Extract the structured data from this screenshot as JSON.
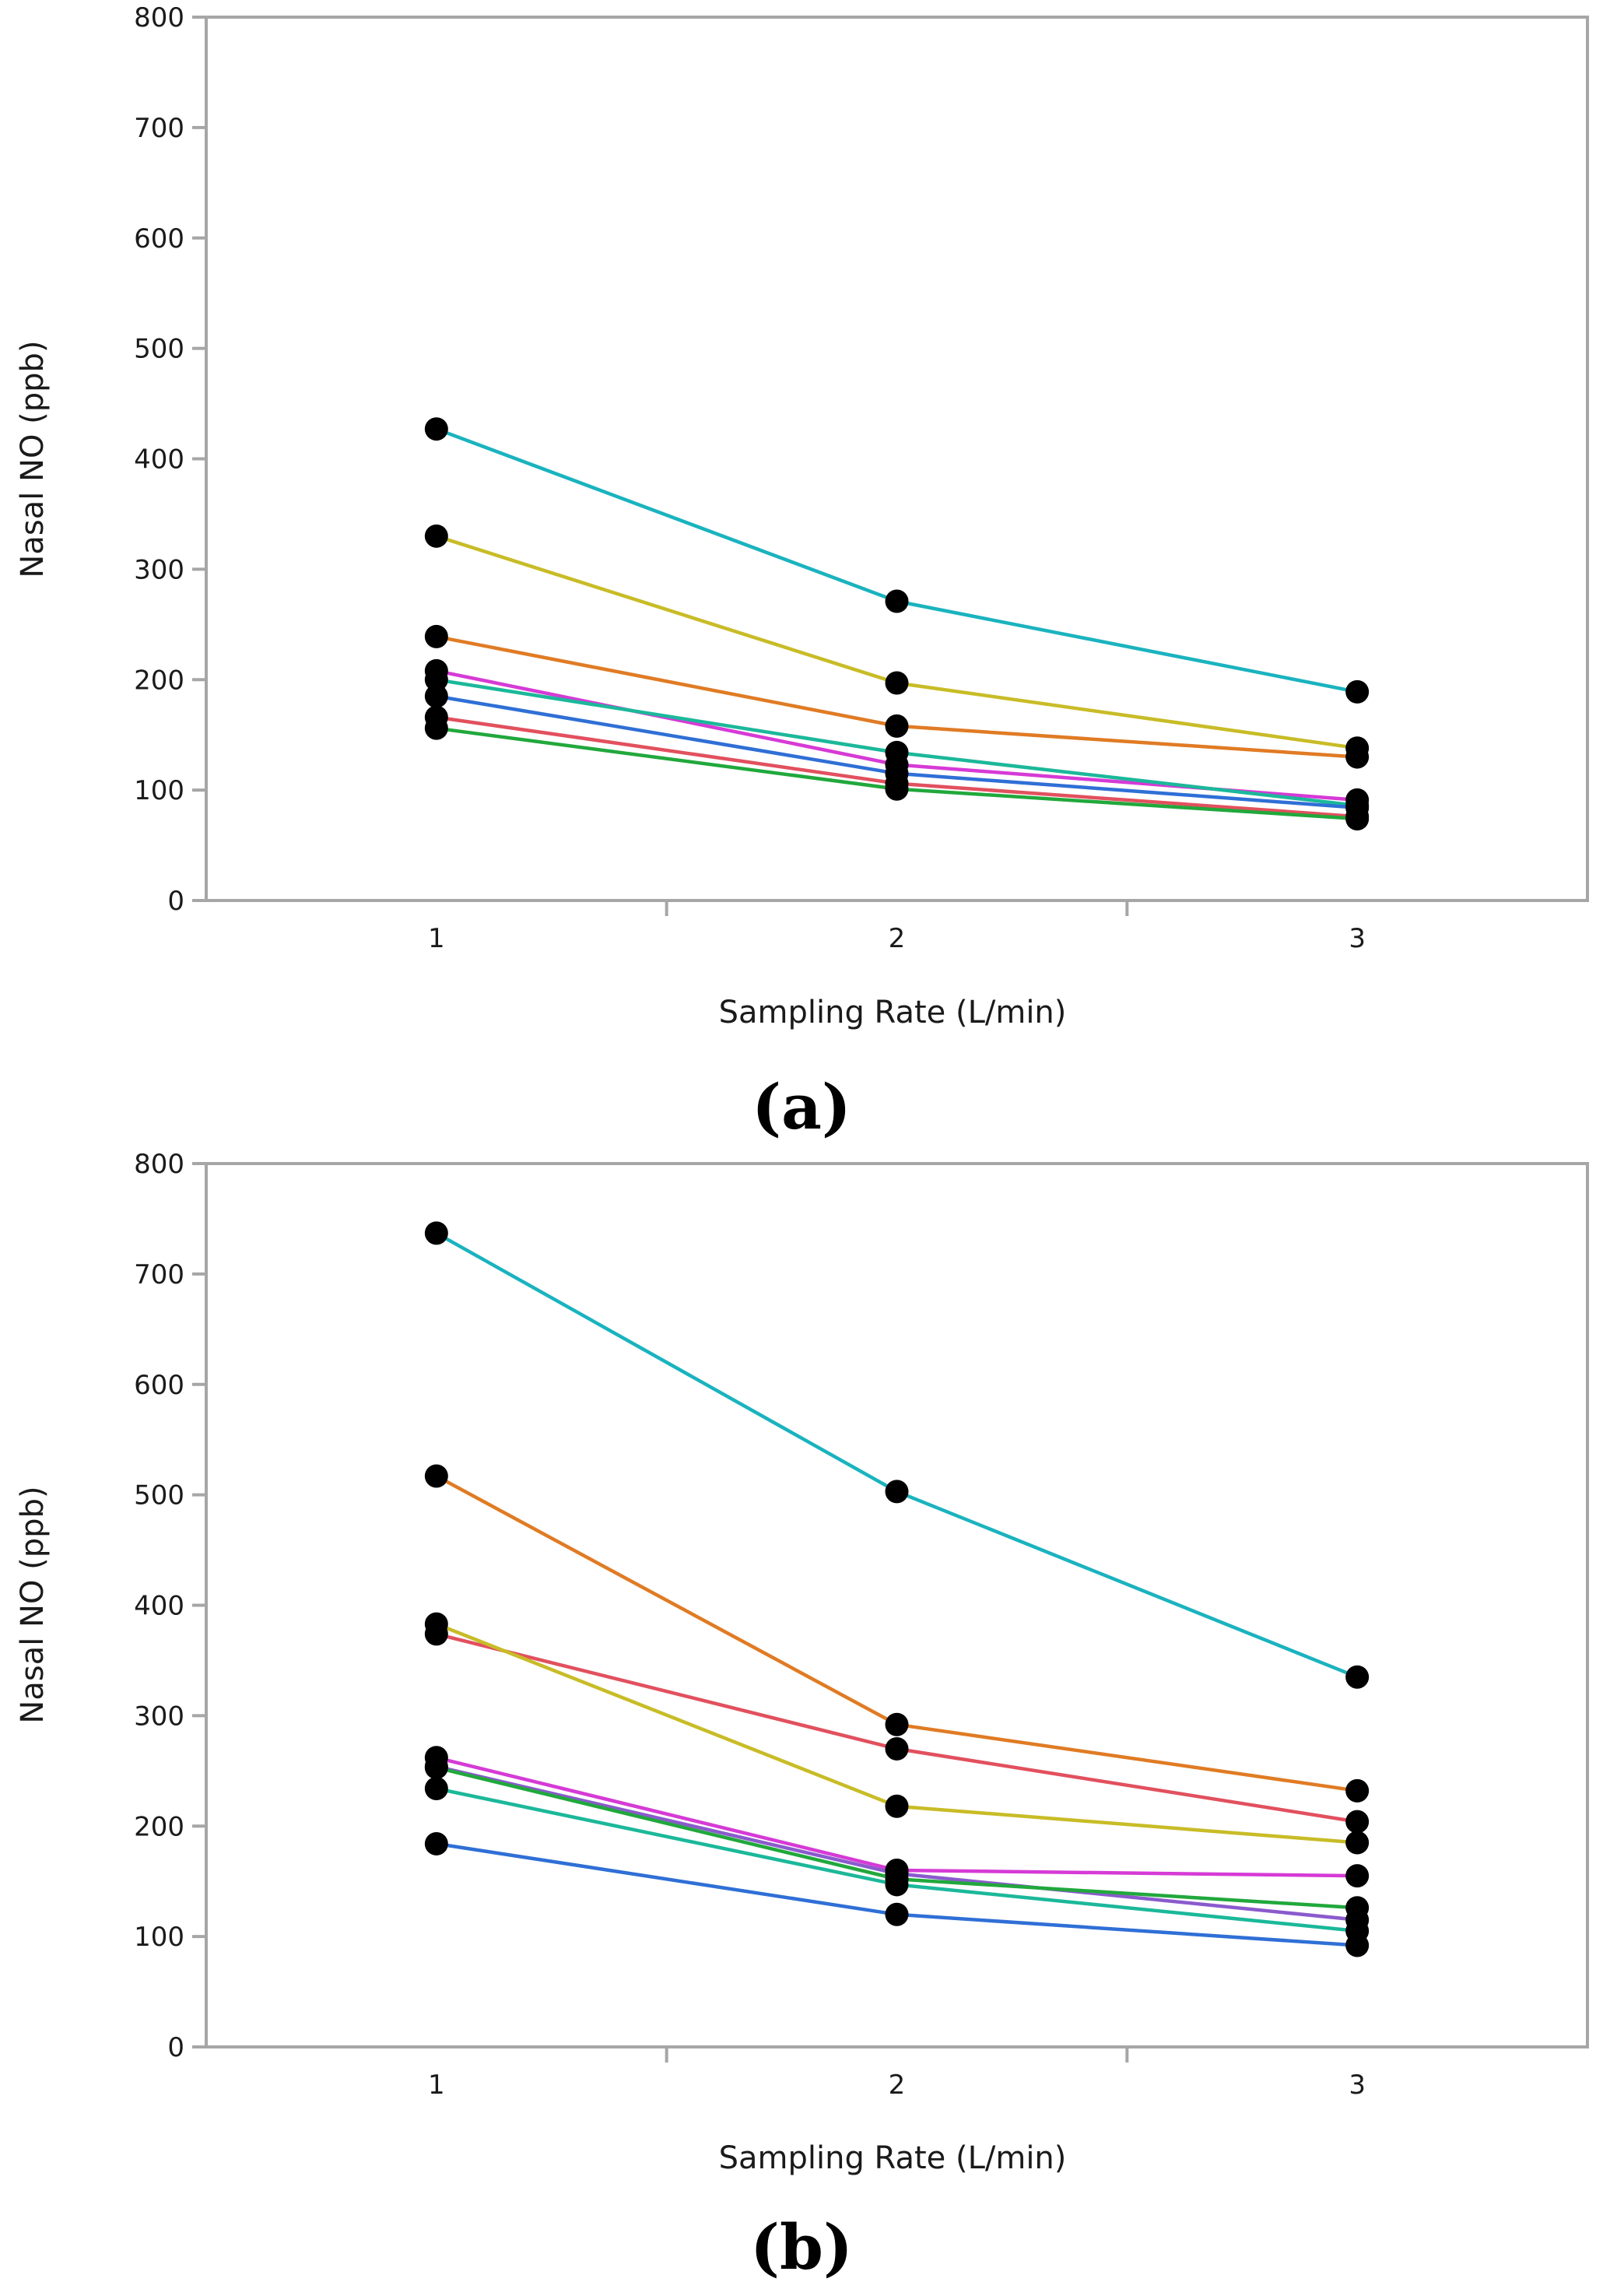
{
  "chart_data": [
    {
      "type": "line",
      "panel_label": "(a)",
      "xlabel": "Sampling Rate (L/min)",
      "ylabel": "Nasal NO (ppb)",
      "x": [
        1,
        2,
        3
      ],
      "xlim": [
        0.5,
        3.5
      ],
      "ylim": [
        0,
        800
      ],
      "xticks": [
        "1",
        "2",
        "3"
      ],
      "yticks": [
        "0",
        "100",
        "200",
        "300",
        "400",
        "500",
        "600",
        "700",
        "800"
      ],
      "grid": false,
      "series": [
        {
          "color": "#1ab3bf",
          "values": [
            427,
            271,
            189
          ]
        },
        {
          "color": "#c8bc27",
          "values": [
            330,
            197,
            138
          ]
        },
        {
          "color": "#e07b24",
          "values": [
            239,
            158,
            130
          ]
        },
        {
          "color": "#d63ad6",
          "values": [
            208,
            123,
            91
          ]
        },
        {
          "color": "#1bb89a",
          "values": [
            200,
            134,
            86
          ]
        },
        {
          "color": "#2f6fd6",
          "values": [
            185,
            115,
            84
          ]
        },
        {
          "color": "#e2505e",
          "values": [
            166,
            106,
            76
          ]
        },
        {
          "color": "#21a83c",
          "values": [
            156,
            101,
            74
          ]
        }
      ]
    },
    {
      "type": "line",
      "panel_label": "(b)",
      "xlabel": "Sampling Rate (L/min)",
      "ylabel": "Nasal NO (ppb)",
      "x": [
        1,
        2,
        3
      ],
      "xlim": [
        0.5,
        3.5
      ],
      "ylim": [
        0,
        800
      ],
      "xticks": [
        "1",
        "2",
        "3"
      ],
      "yticks": [
        "0",
        "100",
        "200",
        "300",
        "400",
        "500",
        "600",
        "700",
        "800"
      ],
      "grid": false,
      "series": [
        {
          "color": "#1ab3bf",
          "values": [
            737,
            503,
            335
          ]
        },
        {
          "color": "#e07b24",
          "values": [
            517,
            292,
            232
          ]
        },
        {
          "color": "#e2505e",
          "values": [
            374,
            270,
            204
          ]
        },
        {
          "color": "#c8bc27",
          "values": [
            383,
            218,
            185
          ]
        },
        {
          "color": "#d63ad6",
          "values": [
            262,
            160,
            155
          ]
        },
        {
          "color": "#8a5acd",
          "values": [
            254,
            157,
            115
          ]
        },
        {
          "color": "#21a83c",
          "values": [
            253,
            152,
            126
          ]
        },
        {
          "color": "#1bb89a",
          "values": [
            234,
            147,
            105
          ]
        },
        {
          "color": "#2f6fd6",
          "values": [
            184,
            120,
            92
          ]
        }
      ]
    }
  ]
}
